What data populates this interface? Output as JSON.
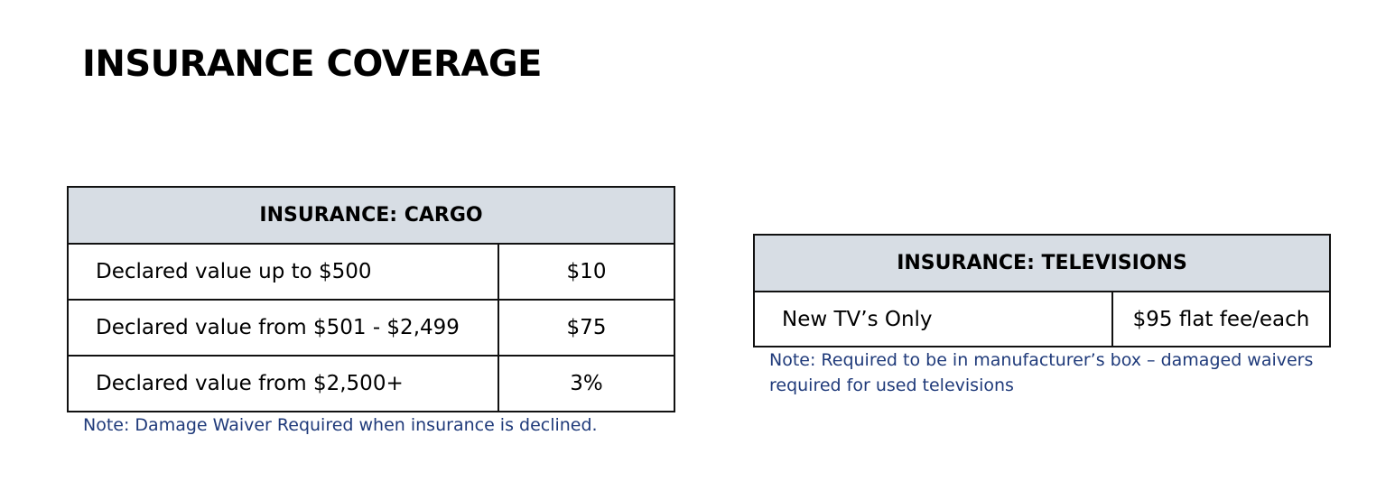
{
  "page_title": "INSURANCE COVERAGE",
  "cargo": {
    "header": "INSURANCE: CARGO",
    "rows": [
      {
        "label": "Declared value up to $500",
        "value": "$10"
      },
      {
        "label": "Declared value from $501 - $2,499",
        "value": "$75"
      },
      {
        "label": "Declared value from $2,500+",
        "value": "3%"
      }
    ],
    "note": "Note: Damage Waiver Required when insurance is declined."
  },
  "televisions": {
    "header": "INSURANCE: TELEVISIONS",
    "rows": [
      {
        "label": "New TV’s Only",
        "value": "$95 flat fee/each"
      }
    ],
    "note": "Note: Required to be in manufacturer’s box – damaged waivers required for used televisions"
  },
  "colors": {
    "title_highlight": "#fff2d1",
    "table_header_bg": "#d7dde4",
    "note_text": "#1f3a7a"
  }
}
